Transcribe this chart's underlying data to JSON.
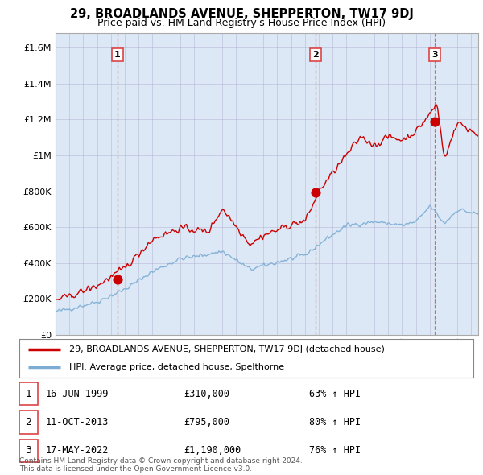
{
  "title": "29, BROADLANDS AVENUE, SHEPPERTON, TW17 9DJ",
  "subtitle": "Price paid vs. HM Land Registry's House Price Index (HPI)",
  "ytick_values": [
    0,
    200000,
    400000,
    600000,
    800000,
    1000000,
    1200000,
    1400000,
    1600000
  ],
  "ylim": [
    0,
    1680000
  ],
  "xlim_start": 1995.0,
  "xlim_end": 2025.5,
  "sale_dates": [
    1999.46,
    2013.78,
    2022.38
  ],
  "sale_prices": [
    310000,
    795000,
    1190000
  ],
  "sale_labels": [
    "1",
    "2",
    "3"
  ],
  "red_line_color": "#cc0000",
  "blue_line_color": "#7dadd4",
  "dashed_line_color": "#dd4444",
  "chart_bg_color": "#dce8f5",
  "legend1_label": "29, BROADLANDS AVENUE, SHEPPERTON, TW17 9DJ (detached house)",
  "legend2_label": "HPI: Average price, detached house, Spelthorne",
  "table_rows": [
    [
      "1",
      "16-JUN-1999",
      "£310,000",
      "63% ↑ HPI"
    ],
    [
      "2",
      "11-OCT-2013",
      "£795,000",
      "80% ↑ HPI"
    ],
    [
      "3",
      "17-MAY-2022",
      "£1,190,000",
      "76% ↑ HPI"
    ]
  ],
  "footnote": "Contains HM Land Registry data © Crown copyright and database right 2024.\nThis data is licensed under the Open Government Licence v3.0.",
  "background_color": "#ffffff",
  "grid_color": "#aaaacc"
}
